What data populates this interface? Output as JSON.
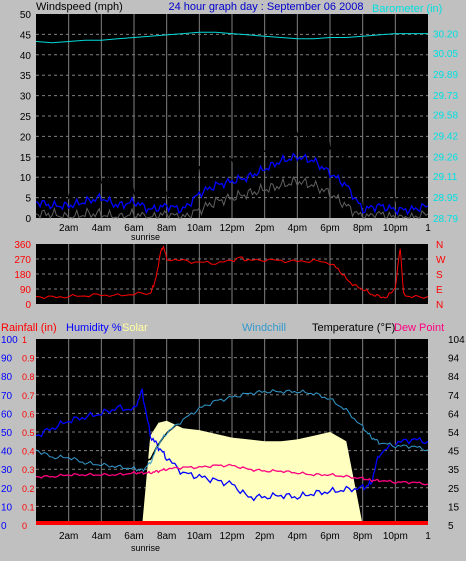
{
  "header": {
    "left": "Windspeed (mph)",
    "center": "24 hour graph day : September 06 2008",
    "right": "Barometer (in)"
  },
  "x_ticks": [
    "2am",
    "4am",
    "6am",
    "8am",
    "10am",
    "12pm",
    "2pm",
    "4pm",
    "6pm",
    "8pm",
    "10pm"
  ],
  "end_tick": "1",
  "sunrise_label": "sunrise",
  "panel3_header": {
    "rainfall": "Rainfall (in)",
    "humidity": "Humidity %",
    "solar": "Solar",
    "windchill": "Windchill",
    "temperature": "Temperature (°F)",
    "dewpoint": "Dew Point"
  },
  "colors": {
    "background": "#c0c0c0",
    "plot_bg": "#000000",
    "grid": "#808080",
    "wind_gust": "#000000",
    "wind_avg": "#0000ff",
    "wind_min": "#606060",
    "barometer": "#00d8d8",
    "direction": "#ff0000",
    "humidity": "#0000ff",
    "solar": "#ffffc0",
    "temperature": "#000000",
    "windchill": "#3399cc",
    "dewpoint": "#ff0080",
    "rainfall": "#ff0000"
  },
  "chart_data": [
    {
      "type": "line",
      "name": "wind-barometer",
      "ylabel": "Windspeed (mph)",
      "ylabel2": "Barometer (in)",
      "ylim": [
        0,
        50
      ],
      "ylim2": [
        28.79,
        30.35
      ],
      "y_ticks": [
        "0",
        "5",
        "10",
        "15",
        "20",
        "25",
        "30",
        "35",
        "40",
        "45",
        "50"
      ],
      "y2_ticks": [
        "28.79",
        "28.95",
        "29.11",
        "29.26",
        "29.42",
        "29.58",
        "29.73",
        "29.89",
        "30.05",
        "30.20"
      ],
      "x": [
        0,
        1,
        2,
        3,
        4,
        5,
        6,
        7,
        8,
        9,
        10,
        11,
        12,
        13,
        14,
        15,
        16,
        17,
        18,
        19,
        20,
        21,
        22,
        23,
        24
      ],
      "series": [
        {
          "key": "gust",
          "values": [
            9,
            7,
            6,
            8,
            10,
            6,
            7,
            4,
            6,
            4,
            12,
            13,
            14,
            14,
            17,
            19,
            22,
            21,
            19,
            14,
            4,
            7,
            5,
            5,
            6
          ]
        },
        {
          "key": "avg",
          "values": [
            4,
            3,
            3,
            4,
            5,
            3,
            4,
            2,
            3,
            2,
            6,
            8,
            9,
            10,
            12,
            14,
            15,
            14,
            11,
            8,
            2,
            3,
            2,
            2,
            3
          ]
        },
        {
          "key": "min",
          "values": [
            1,
            1,
            0,
            1,
            1,
            0,
            1,
            0,
            1,
            0,
            2,
            4,
            5,
            6,
            7,
            8,
            9,
            8,
            6,
            3,
            0,
            1,
            0,
            0,
            1
          ]
        },
        {
          "key": "barometer",
          "values": [
            30.14,
            30.13,
            30.14,
            30.15,
            30.15,
            30.16,
            30.17,
            30.18,
            30.19,
            30.2,
            30.21,
            30.21,
            30.2,
            30.19,
            30.18,
            30.17,
            30.16,
            30.16,
            30.17,
            30.17,
            30.18,
            30.19,
            30.2,
            30.2,
            30.2
          ]
        }
      ]
    },
    {
      "type": "line",
      "name": "wind-direction",
      "ylim": [
        0,
        360
      ],
      "y_ticks": [
        "0",
        "90",
        "180",
        "270",
        "360"
      ],
      "y2_ticks": [
        "N",
        "E",
        "S",
        "W",
        "N"
      ],
      "x": [
        0,
        1,
        2,
        3,
        4,
        5,
        6,
        7,
        7.2,
        7.4,
        7.6,
        7.8,
        8,
        9,
        10,
        11,
        12,
        12.5,
        13,
        14,
        15,
        16,
        17,
        18,
        18.5,
        19,
        19.5,
        20,
        20.5,
        21,
        21.5,
        22,
        22.3,
        22.5,
        23,
        24
      ],
      "series": [
        {
          "key": "direction",
          "values": [
            45,
            40,
            45,
            50,
            55,
            50,
            60,
            65,
            110,
            180,
            300,
            350,
            270,
            260,
            250,
            245,
            260,
            280,
            260,
            265,
            260,
            255,
            260,
            245,
            210,
            150,
            110,
            90,
            60,
            45,
            40,
            100,
            340,
            60,
            40,
            45
          ]
        }
      ]
    },
    {
      "type": "line",
      "name": "temp-humidity-solar",
      "ylim": [
        0,
        100
      ],
      "y_ticks": [
        "0",
        "10",
        "20",
        "30",
        "40",
        "50",
        "60",
        "70",
        "80",
        "90",
        "100"
      ],
      "rain_ticks": [
        "0",
        "0.1",
        "0.2",
        "0.3",
        "0.4",
        "0.5",
        "0.6",
        "0.7",
        "0.8",
        "0.9",
        "1"
      ],
      "ylim2": [
        5,
        104
      ],
      "y2_ticks": [
        "5",
        "15",
        "25",
        "35",
        "45",
        "54",
        "64",
        "74",
        "84",
        "94",
        "104"
      ],
      "x": [
        0,
        1,
        2,
        3,
        4,
        5,
        6,
        6.5,
        7,
        7.5,
        8,
        9,
        10,
        11,
        12,
        13,
        14,
        15,
        16,
        17,
        18,
        19,
        20,
        20.5,
        21,
        22,
        23,
        24
      ],
      "series": [
        {
          "key": "humidity",
          "values": [
            48,
            52,
            56,
            58,
            60,
            63,
            62,
            72,
            48,
            42,
            36,
            28,
            26,
            24,
            22,
            15,
            15,
            16,
            15,
            17,
            18,
            19,
            20,
            22,
            38,
            44,
            46,
            45
          ]
        },
        {
          "key": "temperature",
          "values": [
            49,
            46,
            44,
            42,
            41,
            40,
            39,
            38,
            40,
            48,
            54,
            61,
            67,
            71,
            73,
            75,
            76,
            76,
            76,
            75,
            72,
            66,
            57,
            53,
            50,
            47,
            47,
            45
          ]
        },
        {
          "key": "windchill",
          "values": [
            45,
            41,
            41,
            38,
            37,
            36,
            35,
            34,
            38,
            48,
            54,
            61,
            67,
            71,
            73,
            75,
            76,
            76,
            76,
            75,
            72,
            66,
            57,
            52,
            49,
            47,
            47,
            45
          ]
        },
        {
          "key": "dewpoint",
          "values": [
            26,
            26,
            27,
            27,
            27,
            27,
            28,
            28,
            28,
            29,
            30,
            31,
            31,
            32,
            32,
            30,
            29,
            29,
            28,
            27,
            27,
            26,
            25,
            24,
            24,
            23,
            23,
            22
          ]
        },
        {
          "key": "solar",
          "values": [
            0,
            0,
            0,
            0,
            0,
            0,
            0,
            0,
            48,
            55,
            56,
            52,
            51,
            49,
            47,
            46,
            45,
            45,
            46,
            48,
            50,
            45,
            0,
            0,
            0,
            0,
            0,
            0
          ]
        },
        {
          "key": "rainfall",
          "values": [
            0,
            0,
            0,
            0,
            0,
            0,
            0,
            0,
            0,
            0,
            0,
            0,
            0,
            0,
            0,
            0,
            0,
            0,
            0,
            0,
            0,
            0,
            0,
            0,
            0,
            0,
            0,
            0
          ]
        }
      ]
    }
  ]
}
